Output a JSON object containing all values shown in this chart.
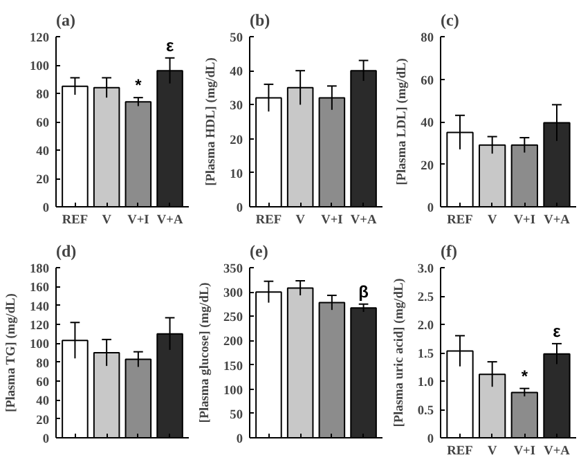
{
  "chart_data": [
    {
      "type": "bar",
      "title": "(a)",
      "categories": [
        "REF",
        "V",
        "V+I",
        "V+A"
      ],
      "values": [
        85,
        84,
        74,
        96
      ],
      "errors": [
        6,
        7,
        3,
        9
      ],
      "colors": [
        "#ffffff",
        "#c8c8c8",
        "#8c8c8c",
        "#2a2a2a"
      ],
      "ylim": [
        0,
        120
      ],
      "yticks": [
        0,
        20,
        40,
        60,
        80,
        100,
        120
      ],
      "annotations": [
        {
          "text": "*",
          "x": "V+I",
          "y": 77
        },
        {
          "text": "ε",
          "x": "V+A",
          "y": 105
        }
      ]
    },
    {
      "type": "bar",
      "title": "(b)",
      "ylabel": "[Plasma HDL] (mg/dL)",
      "categories": [
        "REF",
        "V",
        "V+I",
        "V+A"
      ],
      "values": [
        32,
        35,
        32,
        40
      ],
      "errors": [
        4,
        5,
        3.5,
        3
      ],
      "colors": [
        "#ffffff",
        "#c8c8c8",
        "#8c8c8c",
        "#2a2a2a"
      ],
      "ylim": [
        0,
        50
      ],
      "yticks": [
        0,
        10,
        20,
        30,
        40,
        50
      ]
    },
    {
      "type": "bar",
      "title": "(c)",
      "ylabel": "[Plasma LDL] (mg/dL)",
      "categories": [
        "REF",
        "V",
        "V+I",
        "V+A"
      ],
      "values": [
        35,
        29,
        29,
        39.5
      ],
      "errors": [
        8,
        4,
        3.5,
        8.5
      ],
      "colors": [
        "#ffffff",
        "#c8c8c8",
        "#8c8c8c",
        "#2a2a2a"
      ],
      "ylim": [
        0,
        80
      ],
      "yticks": [
        0,
        20,
        40,
        60,
        80
      ]
    },
    {
      "type": "bar",
      "title": "(d)",
      "ylabel": "[Plasma TG] (mg/dL)",
      "categories": [
        "REF",
        "V",
        "V+I",
        "V+A"
      ],
      "values": [
        103,
        90,
        83,
        110
      ],
      "errors": [
        19,
        14,
        8,
        17
      ],
      "colors": [
        "#ffffff",
        "#c8c8c8",
        "#8c8c8c",
        "#2a2a2a"
      ],
      "ylim": [
        0,
        180
      ],
      "yticks": [
        0,
        20,
        40,
        60,
        80,
        100,
        120,
        140,
        160,
        180
      ],
      "tick_labels": "y"
    },
    {
      "type": "bar",
      "title": "(e)",
      "ylabel": "[Plasma glucose] (mg/dL)",
      "categories": [
        "REF",
        "V",
        "V+I",
        "V+A"
      ],
      "values": [
        300,
        308,
        278,
        267
      ],
      "errors": [
        22,
        15,
        15,
        8
      ],
      "colors": [
        "#ffffff",
        "#c8c8c8",
        "#8c8c8c",
        "#2a2a2a"
      ],
      "ylim": [
        0,
        350
      ],
      "yticks": [
        0,
        50,
        100,
        150,
        200,
        250,
        300,
        350
      ],
      "tick_labels": "y",
      "annotations": [
        {
          "text": "β",
          "x": "V+A",
          "y": 275
        }
      ]
    },
    {
      "type": "bar",
      "title": "(f)",
      "ylabel": "[Plasma uric acid] (mg/dL)",
      "categories": [
        "REF",
        "V",
        "V+I",
        "V+A"
      ],
      "values": [
        1.53,
        1.12,
        0.8,
        1.48
      ],
      "errors": [
        0.27,
        0.22,
        0.07,
        0.18
      ],
      "colors": [
        "#ffffff",
        "#c8c8c8",
        "#8c8c8c",
        "#2a2a2a"
      ],
      "ylim": [
        0,
        3.0
      ],
      "yticks": [
        {
          "value": 0,
          "label": "0"
        },
        {
          "value": 0.5,
          "label": "0.5"
        },
        {
          "value": 1.0,
          "label": "1.0"
        },
        {
          "value": 1.5,
          "label": "1.5"
        },
        {
          "value": 2.0,
          "label": "2.0"
        },
        {
          "value": 2.5,
          "label": "2.5"
        },
        {
          "value": 3.0,
          "label": "3.0"
        }
      ],
      "annotations": [
        {
          "text": "*",
          "x": "V+I",
          "y": 0.87
        },
        {
          "text": "ε",
          "x": "V+A",
          "y": 1.66
        }
      ]
    }
  ]
}
